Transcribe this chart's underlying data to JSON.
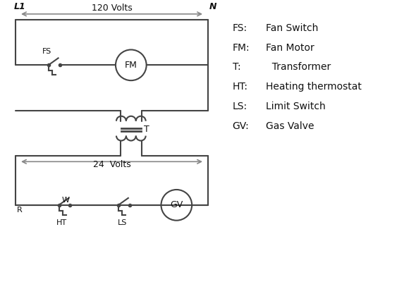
{
  "bg_color": "#ffffff",
  "line_color": "#444444",
  "arrow_color": "#888888",
  "text_color": "#111111",
  "legend_items": [
    [
      "FS:",
      "Fan Switch"
    ],
    [
      "FM:",
      "Fan Motor"
    ],
    [
      "T:",
      "  Transformer"
    ],
    [
      "HT:",
      "Heating thermostat"
    ],
    [
      "LS:",
      "Limit Switch"
    ],
    [
      "GV:",
      "Gas Valve"
    ]
  ],
  "title_L1": "L1",
  "title_N": "N",
  "label_120": "120 Volts",
  "label_24": "24  Volts",
  "label_T": "T",
  "label_FS": "FS",
  "label_FM": "FM",
  "label_GV": "GV",
  "label_R": "R",
  "label_W": "W",
  "label_HT": "HT",
  "label_LS": "LS"
}
